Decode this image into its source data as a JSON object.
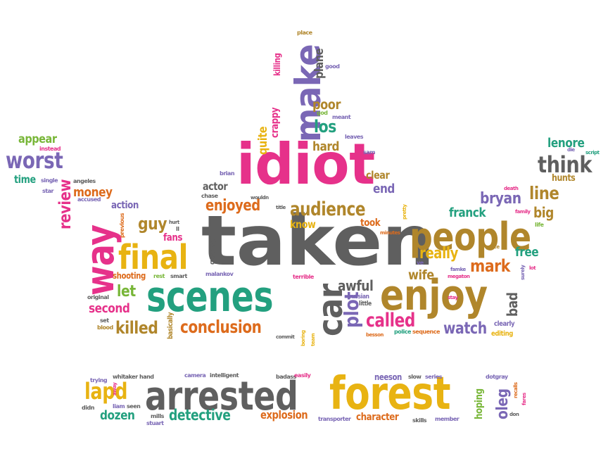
{
  "palette": {
    "gray": "#5f5f5f",
    "pink": "#e6318a",
    "yellow": "#e8b312",
    "teal": "#23a07f",
    "orange": "#dd6b1c",
    "purple": "#7a67b5",
    "green": "#78b638",
    "brown": "#b0862b"
  },
  "words": [
    {
      "text": "taken",
      "color": "#5f5f5f"
    },
    {
      "text": "idiot",
      "color": "#e6318a"
    },
    {
      "text": "make",
      "color": "#7a67b5"
    },
    {
      "text": "people",
      "color": "#b0862b"
    },
    {
      "text": "enjoy",
      "color": "#b0862b"
    },
    {
      "text": "scenes",
      "color": "#23a07f"
    },
    {
      "text": "final",
      "color": "#e8b312"
    },
    {
      "text": "way",
      "color": "#e6318a"
    },
    {
      "text": "car",
      "color": "#5f5f5f"
    },
    {
      "text": "arrested",
      "color": "#5f5f5f"
    },
    {
      "text": "forest",
      "color": "#e8b312"
    },
    {
      "text": "conclusion",
      "color": "#dd6b1c"
    },
    {
      "text": "audience",
      "color": "#b0862b"
    },
    {
      "text": "called",
      "color": "#e6318a"
    },
    {
      "text": "plot",
      "color": "#7a67b5"
    },
    {
      "text": "worst",
      "color": "#7a67b5"
    },
    {
      "text": "think",
      "color": "#5f5f5f"
    },
    {
      "text": "lapd",
      "color": "#e8b312"
    },
    {
      "text": "killed",
      "color": "#b0862b"
    },
    {
      "text": "enjoyed",
      "color": "#dd6b1c"
    },
    {
      "text": "review",
      "color": "#e6318a"
    },
    {
      "text": "guy",
      "color": "#b0862b"
    },
    {
      "text": "los",
      "color": "#23a07f"
    },
    {
      "text": "hard",
      "color": "#b0862b"
    },
    {
      "text": "poor",
      "color": "#b0862b"
    },
    {
      "text": "second",
      "color": "#e6318a"
    },
    {
      "text": "let",
      "color": "#78b638"
    },
    {
      "text": "awful",
      "color": "#5f5f5f"
    },
    {
      "text": "wife",
      "color": "#b0862b"
    },
    {
      "text": "mark",
      "color": "#dd6b1c"
    },
    {
      "text": "really",
      "color": "#e8b312"
    },
    {
      "text": "watch",
      "color": "#7a67b5"
    },
    {
      "text": "line",
      "color": "#b0862b"
    },
    {
      "text": "bryan",
      "color": "#7a67b5"
    },
    {
      "text": "franck",
      "color": "#23a07f"
    },
    {
      "text": "lenore",
      "color": "#23a07f"
    },
    {
      "text": "free",
      "color": "#23a07f"
    },
    {
      "text": "big",
      "color": "#b0862b"
    },
    {
      "text": "bad",
      "color": "#5f5f5f"
    },
    {
      "text": "money",
      "color": "#dd6b1c"
    },
    {
      "text": "time",
      "color": "#23a07f"
    },
    {
      "text": "appear",
      "color": "#78b638"
    },
    {
      "text": "action",
      "color": "#7a67b5"
    },
    {
      "text": "fans",
      "color": "#e6318a"
    },
    {
      "text": "actor",
      "color": "#5f5f5f"
    },
    {
      "text": "know",
      "color": "#e8b312"
    },
    {
      "text": "took",
      "color": "#dd6b1c"
    },
    {
      "text": "end",
      "color": "#7a67b5"
    },
    {
      "text": "clear",
      "color": "#b0862b"
    },
    {
      "text": "quite",
      "color": "#e8b312"
    },
    {
      "text": "crappy",
      "color": "#e6318a"
    },
    {
      "text": "killing",
      "color": "#e6318a"
    },
    {
      "text": "plane",
      "color": "#5f5f5f"
    },
    {
      "text": "dozen",
      "color": "#23a07f"
    },
    {
      "text": "detective",
      "color": "#23a07f"
    },
    {
      "text": "explosion",
      "color": "#dd6b1c"
    },
    {
      "text": "character",
      "color": "#dd6b1c"
    },
    {
      "text": "oleg",
      "color": "#7a67b5"
    },
    {
      "text": "hoping",
      "color": "#78b638"
    },
    {
      "text": "neeson",
      "color": "#7a67b5"
    },
    {
      "text": "hunts",
      "color": "#b0862b"
    },
    {
      "text": "shooting",
      "color": "#dd6b1c"
    },
    {
      "text": "getting",
      "color": "#5f5f5f"
    },
    {
      "text": "russian",
      "color": "#7a67b5"
    },
    {
      "text": "little",
      "color": "#5f5f5f"
    },
    {
      "text": "clearly",
      "color": "#7a67b5"
    },
    {
      "text": "editing",
      "color": "#e8b312"
    },
    {
      "text": "basically",
      "color": "#b0862b"
    },
    {
      "text": "instead",
      "color": "#e6318a"
    },
    {
      "text": "single",
      "color": "#7a67b5"
    },
    {
      "text": "angeles",
      "color": "#5f5f5f"
    },
    {
      "text": "accused",
      "color": "#7a67b5"
    },
    {
      "text": "star",
      "color": "#7a67b5"
    },
    {
      "text": "original",
      "color": "#5f5f5f"
    },
    {
      "text": "set",
      "color": "#5f5f5f"
    },
    {
      "text": "blood",
      "color": "#b0862b"
    },
    {
      "text": "previous",
      "color": "#dd6b1c"
    },
    {
      "text": "hurt",
      "color": "#5f5f5f"
    },
    {
      "text": "ll",
      "color": "#5f5f5f"
    },
    {
      "text": "rest",
      "color": "#78b638"
    },
    {
      "text": "smart",
      "color": "#5f5f5f"
    },
    {
      "text": "malankov",
      "color": "#7a67b5"
    },
    {
      "text": "chase",
      "color": "#5f5f5f"
    },
    {
      "text": "brian",
      "color": "#7a67b5"
    },
    {
      "text": "title",
      "color": "#5f5f5f"
    },
    {
      "text": "wouldn",
      "color": "#5f5f5f"
    },
    {
      "text": "place",
      "color": "#b0862b"
    },
    {
      "text": "good",
      "color": "#7a67b5"
    },
    {
      "text": "god",
      "color": "#78b638"
    },
    {
      "text": "meant",
      "color": "#7a67b5"
    },
    {
      "text": "leaves",
      "color": "#7a67b5"
    },
    {
      "text": "sam",
      "color": "#7a67b5"
    },
    {
      "text": "pretty",
      "color": "#e8b312"
    },
    {
      "text": "minutes",
      "color": "#dd6b1c"
    },
    {
      "text": "terrible",
      "color": "#e6318a"
    },
    {
      "text": "ve",
      "color": "#7a67b5"
    },
    {
      "text": "team",
      "color": "#e8b312"
    },
    {
      "text": "boring",
      "color": "#e8b312"
    },
    {
      "text": "commit",
      "color": "#5f5f5f"
    },
    {
      "text": "besson",
      "color": "#dd6b1c"
    },
    {
      "text": "police",
      "color": "#23a07f"
    },
    {
      "text": "sequence",
      "color": "#dd6b1c"
    },
    {
      "text": "famke",
      "color": "#7a67b5"
    },
    {
      "text": "megaton",
      "color": "#e6318a"
    },
    {
      "text": "grace",
      "color": "#b0862b"
    },
    {
      "text": "stay",
      "color": "#e6318a"
    },
    {
      "text": "death",
      "color": "#e6318a"
    },
    {
      "text": "family",
      "color": "#e6318a"
    },
    {
      "text": "life",
      "color": "#78b638"
    },
    {
      "text": "lot",
      "color": "#e6318a"
    },
    {
      "text": "surely",
      "color": "#7a67b5"
    },
    {
      "text": "die",
      "color": "#7a67b5"
    },
    {
      "text": "script",
      "color": "#23a07f"
    },
    {
      "text": "trying",
      "color": "#7a67b5"
    },
    {
      "text": "whitaker",
      "color": "#5f5f5f"
    },
    {
      "text": "hand",
      "color": "#5f5f5f"
    },
    {
      "text": "camera",
      "color": "#7a67b5"
    },
    {
      "text": "intelligent",
      "color": "#5f5f5f"
    },
    {
      "text": "badass",
      "color": "#5f5f5f"
    },
    {
      "text": "easily",
      "color": "#e6318a"
    },
    {
      "text": "slow",
      "color": "#5f5f5f"
    },
    {
      "text": "series",
      "color": "#7a67b5"
    },
    {
      "text": "dotgray",
      "color": "#7a67b5"
    },
    {
      "text": "recalls",
      "color": "#dd6b1c"
    },
    {
      "text": "fares",
      "color": "#e6318a"
    },
    {
      "text": "don",
      "color": "#5f5f5f"
    },
    {
      "text": "liam",
      "color": "#7a67b5"
    },
    {
      "text": "seen",
      "color": "#5f5f5f"
    },
    {
      "text": "away",
      "color": "#e6318a"
    },
    {
      "text": "didn",
      "color": "#5f5f5f"
    },
    {
      "text": "mills",
      "color": "#5f5f5f"
    },
    {
      "text": "stuart",
      "color": "#7a67b5"
    },
    {
      "text": "transporter",
      "color": "#7a67b5"
    },
    {
      "text": "skills",
      "color": "#5f5f5f"
    },
    {
      "text": "member",
      "color": "#7a67b5"
    }
  ]
}
